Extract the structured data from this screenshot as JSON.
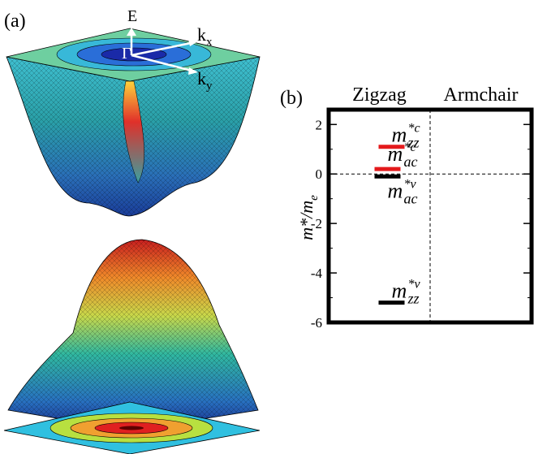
{
  "panel_a": {
    "label": "(a)",
    "energy_axis": "E",
    "kx": {
      "base": "k",
      "sub": "x"
    },
    "ky": {
      "base": "k",
      "sub": "y"
    },
    "gamma": "Γ"
  },
  "chart_data": {
    "type": "level",
    "panel_label": "(b)",
    "ylabel": {
      "base": "m*/m",
      "sub": "e"
    },
    "categories": [
      "Zigzag",
      "Armchair"
    ],
    "series": [
      {
        "color": "#e41a1c",
        "values": [
          1.1,
          0.2
        ],
        "value_labels": [
          {
            "base": "m",
            "sup": "*c",
            "sub": "zz"
          },
          {
            "base": "m",
            "sup": "*c",
            "sub": "ac"
          }
        ]
      },
      {
        "color": "#000000",
        "values": [
          -5.2,
          -0.1
        ],
        "value_labels": [
          {
            "base": "m",
            "sup": "*v",
            "sub": "zz"
          },
          {
            "base": "m",
            "sup": "*v",
            "sub": "ac"
          }
        ]
      }
    ],
    "ylim": [
      -6,
      2.6
    ],
    "yticks": [
      -6,
      -4,
      -2,
      0,
      2
    ],
    "minor_yticks": [
      -5,
      -3,
      -1,
      1
    ],
    "zero_line": true
  }
}
